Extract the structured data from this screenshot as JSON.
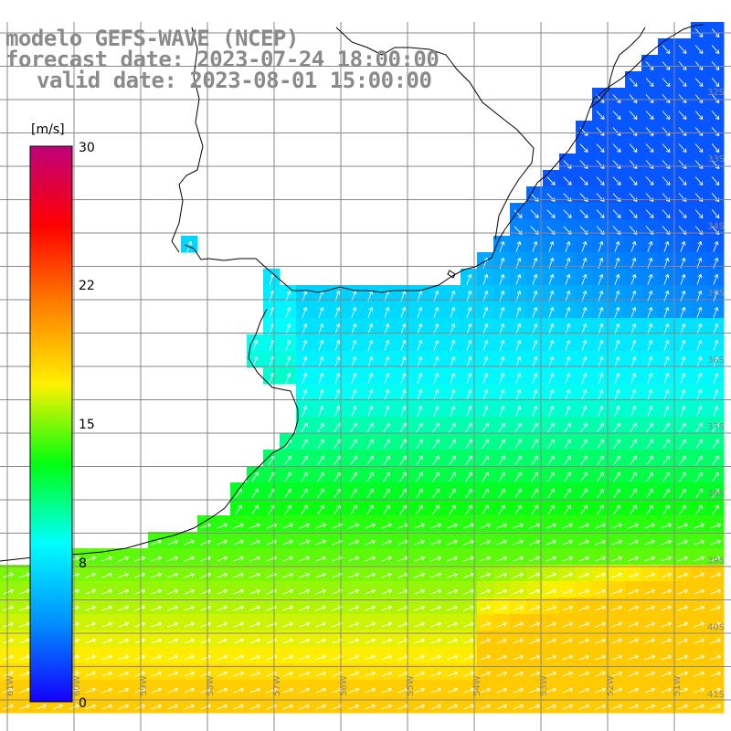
{
  "title": {
    "model": "modelo GEFS-WAVE (NCEP)",
    "forecast": "forecast date: 2023-07-24 18:00:00",
    "valid": "valid date: 2023-08-01 15:00:00"
  },
  "colorbar": {
    "unit": "[m/s]",
    "ticks": [
      "30",
      "22",
      "15",
      "8",
      "0"
    ],
    "colors": [
      "#1400ff",
      "#0090ff",
      "#00ffff",
      "#00ff10",
      "#fff000",
      "#ff8000",
      "#ff0000",
      "#c0007a"
    ]
  },
  "lat_labels": [
    "32S",
    "33S",
    "34S",
    "35S",
    "36S",
    "37S",
    "38S",
    "39S",
    "40S",
    "41S"
  ],
  "lon_labels": [
    "61W",
    "60W",
    "59W",
    "58W",
    "57W",
    "56W",
    "55W",
    "54W",
    "53W",
    "52W",
    "51W"
  ],
  "map_colors": {
    "land": "#ffffff",
    "grid": "#888888",
    "coast": "#000000",
    "arrow": "#ffffff"
  }
}
